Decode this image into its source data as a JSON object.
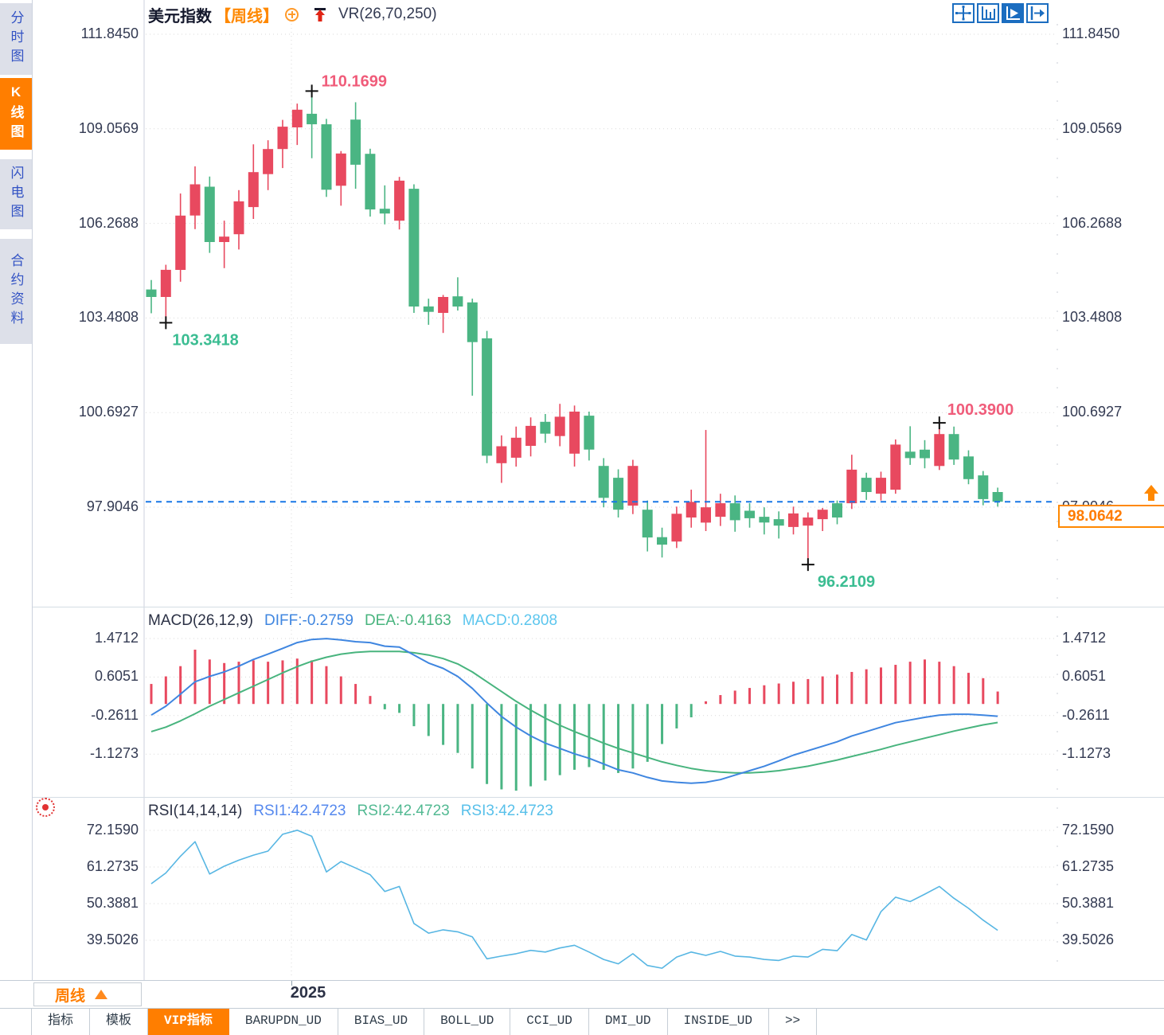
{
  "title": {
    "symbol": "美元指数",
    "period_tag": "【周线】",
    "overlay_indicator": "VR(26,70,250)"
  },
  "sidebar": {
    "items": [
      {
        "label": "分时图",
        "active": false
      },
      {
        "label": "K线图",
        "active": true
      },
      {
        "label": "闪电图",
        "active": false
      },
      {
        "label": "合约资料",
        "active": false
      }
    ]
  },
  "toolbar_icons": [
    "pan-icon",
    "scale-axis-icon",
    "auto-fit-icon",
    "shift-right-icon"
  ],
  "main_axis_labels": [
    "111.8450",
    "109.0569",
    "106.2688",
    "103.4808",
    "100.6927",
    "97.9046"
  ],
  "macd_axis_labels": [
    "1.4712",
    "0.6051",
    "-0.2611",
    "-1.1273"
  ],
  "rsi_axis_labels": [
    "72.1590",
    "61.2735",
    "50.3881",
    "39.5026"
  ],
  "macd_legend": {
    "title": "MACD(26,12,9)",
    "items": [
      {
        "label": "DIFF:-0.2759",
        "color": "#3f86e0"
      },
      {
        "label": "DEA:-0.4163",
        "color": "#48b47e"
      },
      {
        "label": "MACD:0.2808",
        "color": "#5cc6ee"
      }
    ]
  },
  "rsi_legend": {
    "title": "RSI(14,14,14)",
    "items": [
      {
        "label": "RSI1:42.4723",
        "color": "#5588ee"
      },
      {
        "label": "RSI2:42.4723",
        "color": "#52b992"
      },
      {
        "label": "RSI3:42.4723",
        "color": "#58c0ea"
      }
    ]
  },
  "x_axis": {
    "year_label": "2025",
    "period_label": "周线"
  },
  "price_box": {
    "value": "98.0642"
  },
  "bottom_tabs": [
    {
      "label": "指标",
      "active": false
    },
    {
      "label": "模板",
      "active": false
    },
    {
      "label": "VIP指标",
      "active": true
    },
    {
      "label": "BARUPDN_UD",
      "active": false
    },
    {
      "label": "BIAS_UD",
      "active": false
    },
    {
      "label": "BOLL_UD",
      "active": false
    },
    {
      "label": "CCI_UD",
      "active": false
    },
    {
      "label": "DMI_UD",
      "active": false
    },
    {
      "label": "INSIDE_UD",
      "active": false
    },
    {
      "label": ">>",
      "active": false
    }
  ],
  "chart_data": {
    "type": "candlestick+macd+rsi",
    "symbol": "美元指数",
    "timeframe": "周线",
    "colors": {
      "up": "#e8495f",
      "down": "#4ab583",
      "high_label": "#f05c7a",
      "low_label": "#3bbd92",
      "diff_line": "#3f86e0",
      "dea_line": "#48b47e",
      "rsi_line": "#57b6e3",
      "dashed_price": "#1877e5",
      "accent_orange": "#ff8800"
    },
    "main_axis_values": [
      111.845,
      109.0569,
      106.2688,
      103.4808,
      100.6927,
      97.9046
    ],
    "macd_axis_values": [
      1.4712,
      0.6051,
      -0.2611,
      -1.1273
    ],
    "rsi_axis_values": [
      72.159,
      61.2735,
      50.3881,
      39.5026
    ],
    "candles": [
      [
        104.32,
        104.6,
        103.62,
        104.1
      ],
      [
        104.1,
        105.05,
        103.3418,
        104.9
      ],
      [
        104.9,
        107.15,
        104.55,
        106.5
      ],
      [
        106.5,
        107.95,
        106.1,
        107.42
      ],
      [
        107.35,
        107.65,
        105.4,
        105.72
      ],
      [
        105.72,
        106.35,
        104.95,
        105.88
      ],
      [
        105.95,
        107.25,
        105.5,
        106.92
      ],
      [
        106.75,
        108.6,
        106.4,
        107.78
      ],
      [
        107.72,
        108.72,
        107.25,
        108.46
      ],
      [
        108.46,
        109.32,
        107.9,
        109.12
      ],
      [
        109.1,
        109.8,
        108.58,
        109.62
      ],
      [
        109.5,
        110.1699,
        108.19,
        109.19
      ],
      [
        109.19,
        109.35,
        107.05,
        107.26
      ],
      [
        107.38,
        108.4,
        106.79,
        108.33
      ],
      [
        109.33,
        109.84,
        107.29,
        108.0
      ],
      [
        108.32,
        108.47,
        106.47,
        106.68
      ],
      [
        106.7,
        107.39,
        106.24,
        106.56
      ],
      [
        106.35,
        107.64,
        106.09,
        107.53
      ],
      [
        107.29,
        107.42,
        103.63,
        103.82
      ],
      [
        103.82,
        104.05,
        103.28,
        103.66
      ],
      [
        103.63,
        104.16,
        103.04,
        104.1
      ],
      [
        104.12,
        104.68,
        103.7,
        103.82
      ],
      [
        103.94,
        104.05,
        101.19,
        102.77
      ],
      [
        102.88,
        103.1,
        99.2,
        99.42
      ],
      [
        99.2,
        100.02,
        98.62,
        99.7
      ],
      [
        99.36,
        100.28,
        99.1,
        99.95
      ],
      [
        99.71,
        100.55,
        99.4,
        100.3
      ],
      [
        100.42,
        100.65,
        99.8,
        100.07
      ],
      [
        100.0,
        100.95,
        99.7,
        100.57
      ],
      [
        99.48,
        100.9,
        99.1,
        100.72
      ],
      [
        100.6,
        100.72,
        99.28,
        99.6
      ],
      [
        99.12,
        99.35,
        97.9,
        98.18
      ],
      [
        98.77,
        99.02,
        97.6,
        97.83
      ],
      [
        97.95,
        99.3,
        97.7,
        99.12
      ],
      [
        97.83,
        98.1,
        96.6,
        97.01
      ],
      [
        97.02,
        97.3,
        96.42,
        96.8
      ],
      [
        96.89,
        97.92,
        96.7,
        97.71
      ],
      [
        97.6,
        98.42,
        97.3,
        98.06
      ],
      [
        97.45,
        100.18,
        97.2,
        97.9
      ],
      [
        97.62,
        98.3,
        97.35,
        98.02
      ],
      [
        98.02,
        98.25,
        97.18,
        97.52
      ],
      [
        97.8,
        98.02,
        97.3,
        97.58
      ],
      [
        97.62,
        97.9,
        97.1,
        97.45
      ],
      [
        97.55,
        97.78,
        96.98,
        97.36
      ],
      [
        97.32,
        97.92,
        97.1,
        97.72
      ],
      [
        97.36,
        97.75,
        96.2109,
        97.6
      ],
      [
        97.55,
        97.88,
        97.2,
        97.83
      ],
      [
        98.02,
        98.1,
        97.4,
        97.6
      ],
      [
        98.02,
        99.45,
        97.85,
        99.01
      ],
      [
        98.77,
        98.92,
        98.12,
        98.35
      ],
      [
        98.3,
        98.95,
        98.1,
        98.77
      ],
      [
        98.42,
        99.9,
        98.3,
        99.75
      ],
      [
        99.54,
        100.29,
        99.15,
        99.35
      ],
      [
        99.6,
        99.88,
        99.05,
        99.35
      ],
      [
        99.12,
        100.39,
        99.0,
        100.06
      ],
      [
        100.06,
        100.28,
        99.15,
        99.31
      ],
      [
        99.4,
        99.58,
        98.58,
        98.73
      ],
      [
        98.84,
        98.97,
        97.96,
        98.14
      ],
      [
        98.35,
        98.48,
        97.92,
        98.0642
      ]
    ],
    "macd": {
      "diff": [
        -0.25,
        -0.05,
        0.22,
        0.5,
        0.62,
        0.72,
        0.85,
        1.0,
        1.12,
        1.25,
        1.38,
        1.45,
        1.47,
        1.44,
        1.4,
        1.38,
        1.3,
        1.28,
        1.1,
        0.92,
        0.8,
        0.62,
        0.35,
        0.02,
        -0.28,
        -0.52,
        -0.72,
        -0.88,
        -1.0,
        -1.12,
        -1.22,
        -1.35,
        -1.48,
        -1.55,
        -1.65,
        -1.73,
        -1.76,
        -1.78,
        -1.76,
        -1.7,
        -1.6,
        -1.5,
        -1.4,
        -1.28,
        -1.15,
        -1.05,
        -0.95,
        -0.85,
        -0.72,
        -0.62,
        -0.52,
        -0.42,
        -0.36,
        -0.3,
        -0.25,
        -0.23,
        -0.23,
        -0.25,
        -0.2759
      ],
      "dea": [
        -0.62,
        -0.52,
        -0.38,
        -0.22,
        -0.05,
        0.1,
        0.25,
        0.4,
        0.55,
        0.7,
        0.84,
        0.96,
        1.05,
        1.12,
        1.16,
        1.18,
        1.18,
        1.18,
        1.15,
        1.1,
        1.02,
        0.9,
        0.72,
        0.5,
        0.28,
        0.06,
        -0.14,
        -0.32,
        -0.48,
        -0.62,
        -0.75,
        -0.88,
        -1.0,
        -1.1,
        -1.2,
        -1.3,
        -1.38,
        -1.45,
        -1.5,
        -1.53,
        -1.55,
        -1.55,
        -1.53,
        -1.5,
        -1.45,
        -1.4,
        -1.33,
        -1.26,
        -1.18,
        -1.1,
        -1.02,
        -0.93,
        -0.85,
        -0.77,
        -0.69,
        -0.61,
        -0.54,
        -0.47,
        -0.4163
      ],
      "hist": [
        0.45,
        0.62,
        0.85,
        1.22,
        1.0,
        0.92,
        0.95,
        0.98,
        0.95,
        0.98,
        1.02,
        0.98,
        0.85,
        0.62,
        0.45,
        0.18,
        -0.12,
        -0.2,
        -0.5,
        -0.72,
        -0.92,
        -1.1,
        -1.45,
        -1.8,
        -1.92,
        -1.95,
        -1.85,
        -1.72,
        -1.6,
        -1.48,
        -1.42,
        -1.48,
        -1.55,
        -1.45,
        -1.3,
        -0.9,
        -0.55,
        -0.3,
        0.06,
        0.2,
        0.3,
        0.36,
        0.42,
        0.46,
        0.5,
        0.56,
        0.62,
        0.66,
        0.72,
        0.78,
        0.82,
        0.88,
        0.95,
        1.0,
        0.95,
        0.85,
        0.7,
        0.58,
        0.28
      ]
    },
    "rsi": [
      56.3,
      59.5,
      64.5,
      68.8,
      59.2,
      61.5,
      63.3,
      64.8,
      66.0,
      71.0,
      72.2,
      70.4,
      59.8,
      62.9,
      61.0,
      59.0,
      54.0,
      55.5,
      44.5,
      41.6,
      42.6,
      42.0,
      40.5,
      34.0,
      34.8,
      35.5,
      36.5,
      36.0,
      37.2,
      38.0,
      36.0,
      33.8,
      32.5,
      35.5,
      32.0,
      31.2,
      34.5,
      36.0,
      35.0,
      36.2,
      34.8,
      34.5,
      33.8,
      33.5,
      34.8,
      34.5,
      36.8,
      36.4,
      41.2,
      39.6,
      48.0,
      52.3,
      51.0,
      53.2,
      55.5,
      52.0,
      49.0,
      45.5,
      42.4723
    ],
    "annotations": {
      "high1": {
        "index": 11,
        "value": 110.1699,
        "text": "110.1699"
      },
      "low1": {
        "index": 1,
        "value": 103.3418,
        "text": "103.3418"
      },
      "low2": {
        "index": 45,
        "value": 96.2109,
        "text": "96.2109"
      },
      "high2": {
        "index": 54,
        "value": 100.39,
        "text": "100.3900"
      },
      "last": {
        "value": 98.0642,
        "text": "98.0642"
      }
    }
  }
}
